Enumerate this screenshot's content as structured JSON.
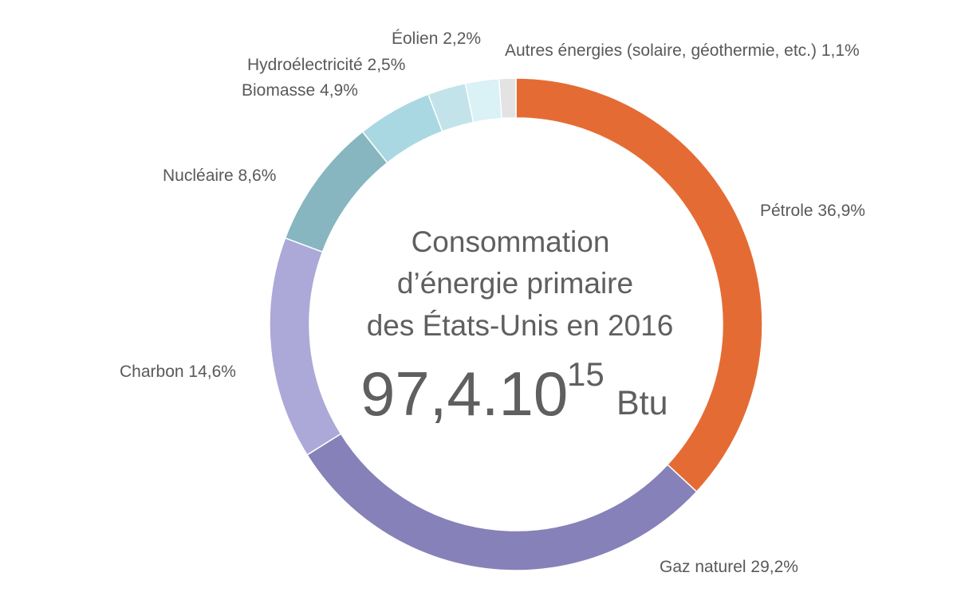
{
  "chart_data": {
    "type": "pie",
    "donut": true,
    "center": {
      "title_lines": [
        "Consommation",
        "d’énergie primaire",
        "des États-Unis en 2016"
      ],
      "value_base": "97,4.10",
      "value_exponent": "15",
      "value_unit": "Btu"
    },
    "slices": [
      {
        "name": "Pétrole",
        "value": 36.9,
        "value_label": "36,9%",
        "color": "#e46c34"
      },
      {
        "name": "Gaz naturel",
        "value": 29.2,
        "value_label": "29,2%",
        "color": "#8681b8"
      },
      {
        "name": "Charbon",
        "value": 14.6,
        "value_label": "14,6%",
        "color": "#aca8d8"
      },
      {
        "name": "Nucléaire",
        "value": 8.6,
        "value_label": "8,6%",
        "color": "#87b6c0"
      },
      {
        "name": "Biomasse",
        "value": 4.9,
        "value_label": "4,9%",
        "color": "#a9d8e2"
      },
      {
        "name": "Hydroélectricité",
        "value": 2.5,
        "value_label": "2,5%",
        "color": "#c2e3ea"
      },
      {
        "name": "Éolien",
        "value": 2.2,
        "value_label": "2,2%",
        "color": "#daf1f6"
      },
      {
        "name": "Autres énergies (solaire, géothermie, etc.)",
        "value": 1.1,
        "value_label": "1,1%",
        "color": "#e3e3e3"
      }
    ]
  }
}
